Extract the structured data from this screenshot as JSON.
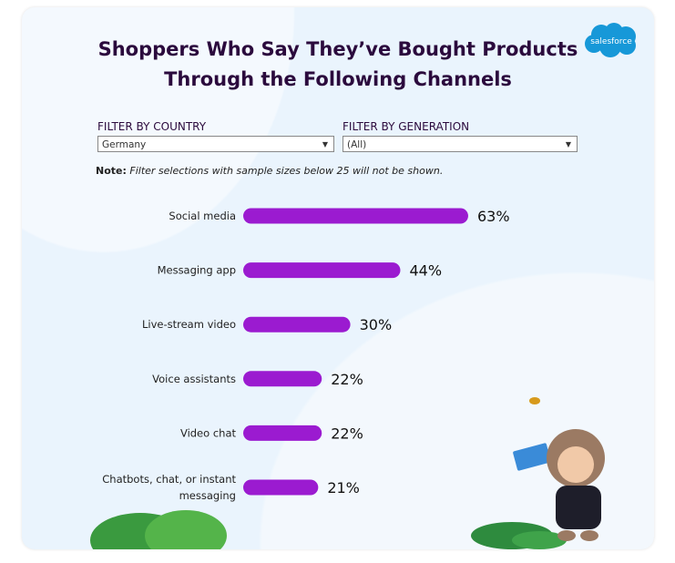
{
  "title_line1": "Shoppers Who Say They’ve Bought Products",
  "title_line2": "Through the Following Channels",
  "logo_text": "salesforce",
  "filters": {
    "country_label": "FILTER BY COUNTRY",
    "country_value": "Germany",
    "generation_label": "FILTER BY GENERATION",
    "generation_value": "(All)"
  },
  "note": {
    "prefix": "Note:",
    "text": "Filter selections with sample sizes below 25 will not be shown."
  },
  "colors": {
    "bar": "#9b1bd0",
    "title": "#2b0a3d",
    "logo": "#1798d8"
  },
  "chart_data": {
    "type": "bar",
    "orientation": "horizontal",
    "categories": [
      "Social media",
      "Messaging app",
      "Live-stream video",
      "Voice assistants",
      "Video chat",
      "Chatbots, chat, or instant messaging"
    ],
    "values": [
      63,
      44,
      30,
      22,
      22,
      21
    ],
    "data_labels": [
      "63%",
      "44%",
      "30%",
      "22%",
      "22%",
      "21%"
    ],
    "unit": "%",
    "grid": false
  }
}
